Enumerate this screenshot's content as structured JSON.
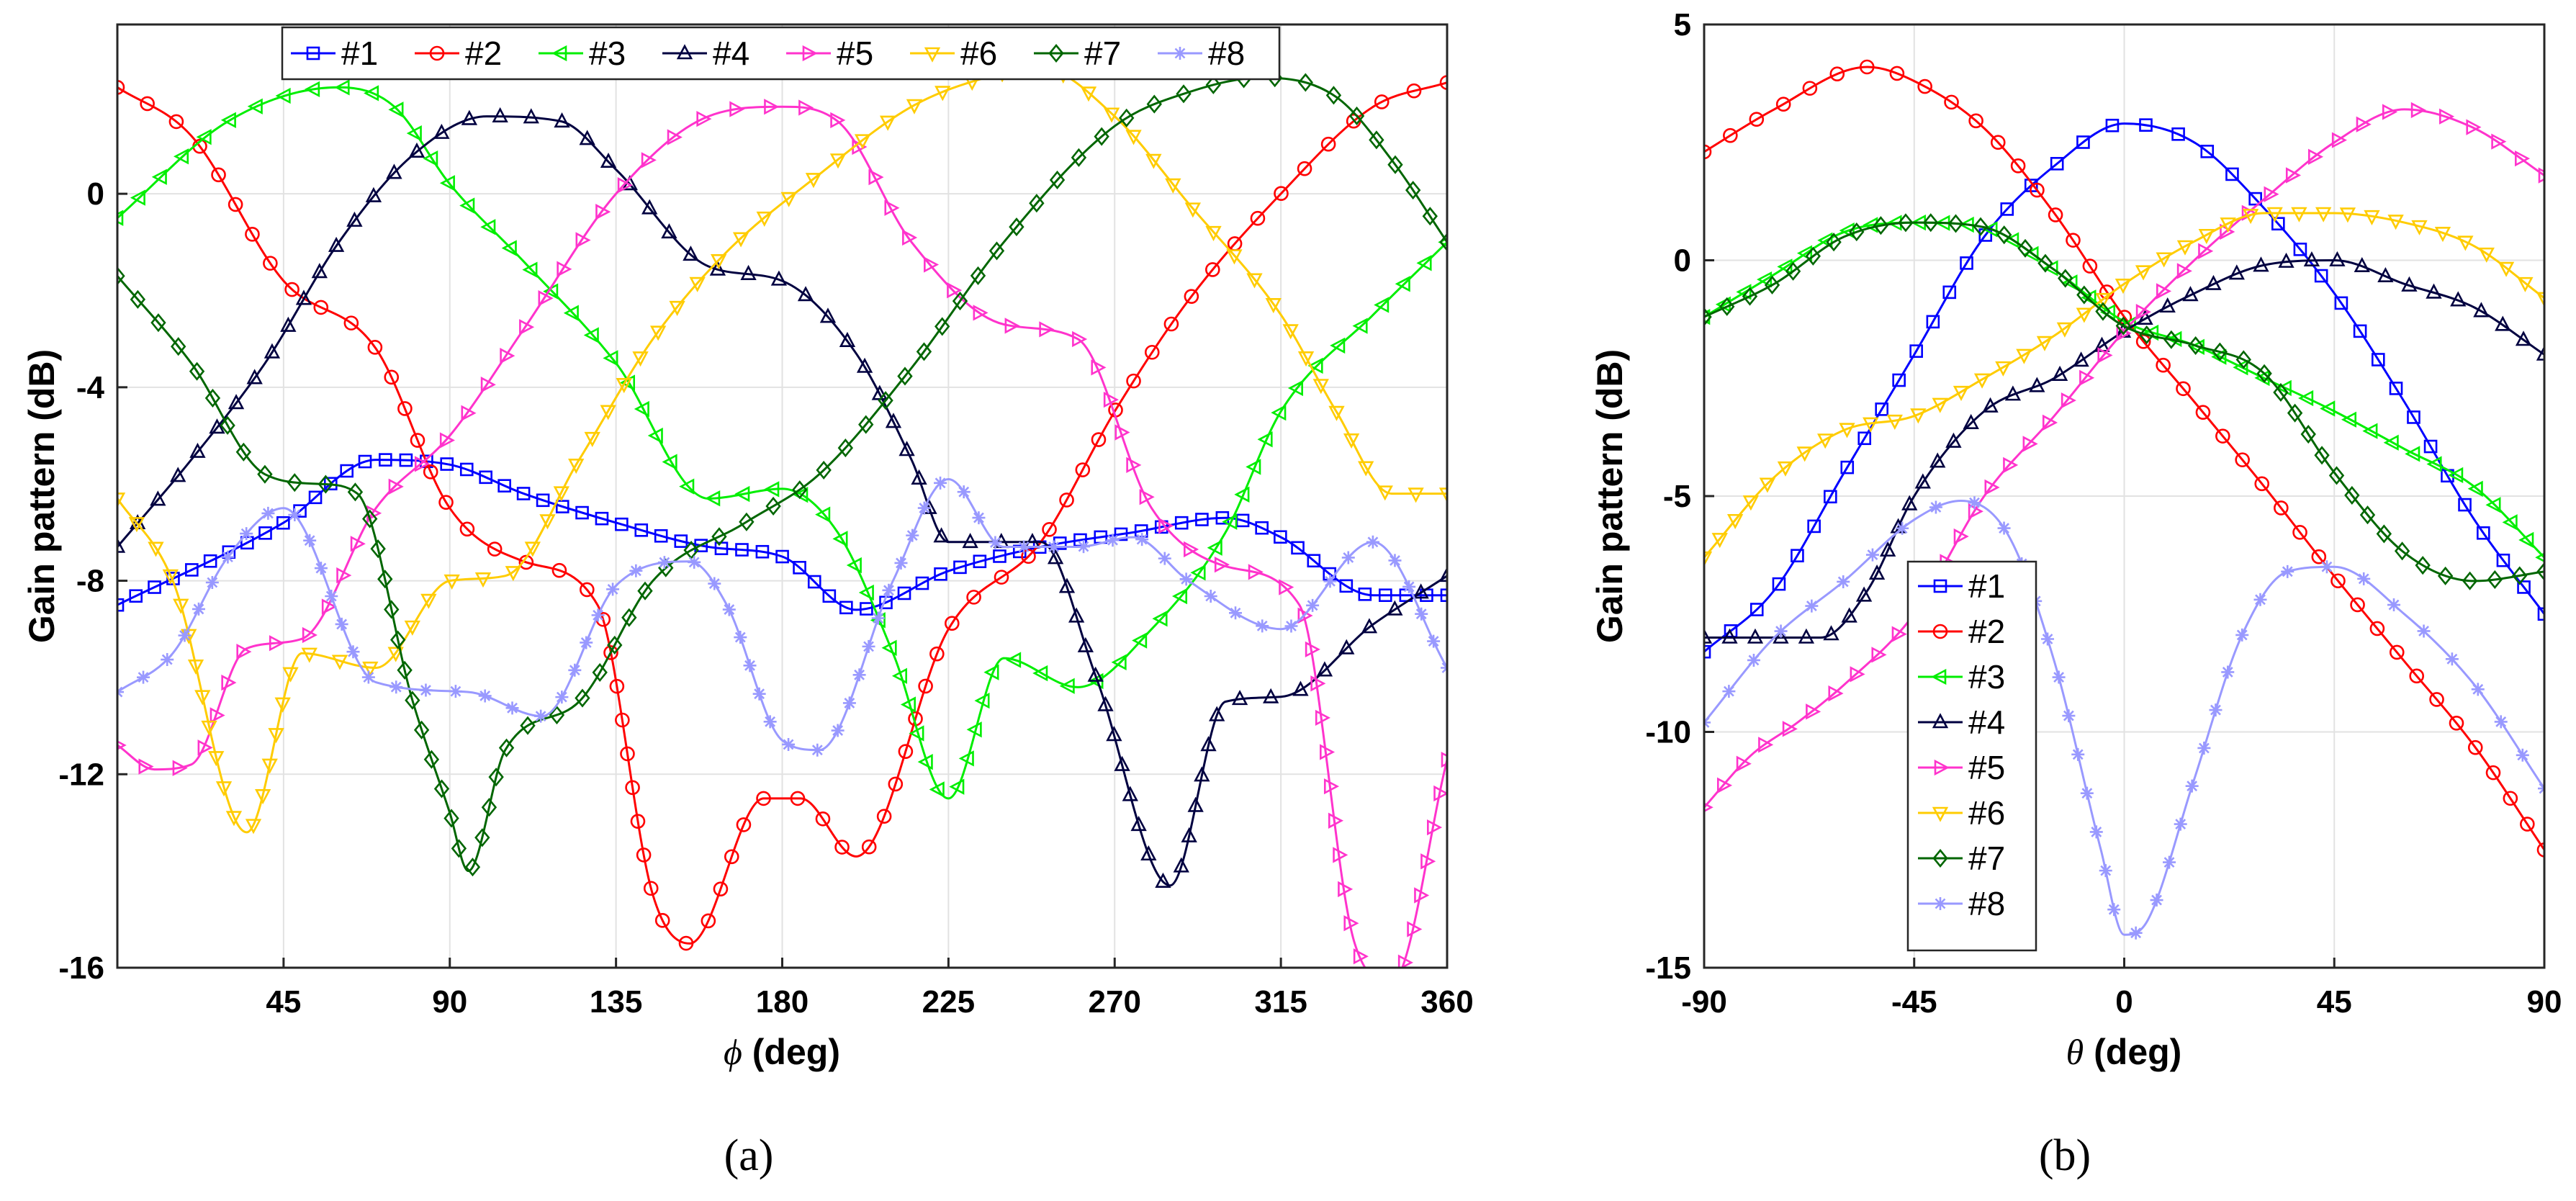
{
  "chart_data": [
    {
      "type": "line",
      "xlabel_symbol": "ϕ",
      "xlabel_rest": " (deg)",
      "ylabel": "Gain pattern (dB)",
      "subcaption": "(a)",
      "xlim": [
        0,
        360
      ],
      "ylim": [
        -16,
        3.5
      ],
      "xticks": [
        45,
        90,
        135,
        180,
        225,
        270,
        315,
        360
      ],
      "yticks": [
        0,
        -4,
        -8,
        -12,
        -16
      ],
      "legend_position": "top",
      "series": [
        {
          "name": "#1",
          "color": "#0000ff",
          "marker": "square",
          "x": [
            0,
            45,
            70,
            90,
            110,
            135,
            160,
            180,
            200,
            225,
            250,
            275,
            300,
            315,
            340,
            360
          ],
          "y": [
            -8.5,
            -6.8,
            -5.5,
            -5.6,
            -6.2,
            -6.8,
            -7.3,
            -7.5,
            -8.6,
            -7.8,
            -7.3,
            -7.0,
            -6.7,
            -7.1,
            -8.3,
            -8.3
          ]
        },
        {
          "name": "#2",
          "color": "#ff0000",
          "marker": "circle",
          "x": [
            0,
            20,
            45,
            70,
            90,
            110,
            130,
            145,
            155,
            175,
            185,
            200,
            225,
            250,
            270,
            290,
            315,
            340,
            360
          ],
          "y": [
            2.2,
            1.2,
            -1.8,
            -3.2,
            -6.5,
            -7.6,
            -8.5,
            -14.5,
            -15.5,
            -12.5,
            -12.5,
            -13.7,
            -9.0,
            -7.2,
            -4.5,
            -2.2,
            0,
            1.8,
            2.3
          ]
        },
        {
          "name": "#3",
          "color": "#00ee00",
          "marker": "triangle-left",
          "x": [
            0,
            30,
            60,
            75,
            90,
            110,
            135,
            160,
            180,
            195,
            210,
            225,
            240,
            260,
            280,
            300,
            315,
            340,
            360
          ],
          "y": [
            -0.5,
            1.5,
            2.2,
            1.8,
            0.2,
            -1.4,
            -3.5,
            -6.3,
            -6.1,
            -7.0,
            -9.5,
            -12.5,
            -9.6,
            -10.2,
            -9.0,
            -7.0,
            -4.5,
            -2.5,
            -1.0
          ]
        },
        {
          "name": "#4",
          "color": "#000040",
          "marker": "triangle-up",
          "x": [
            0,
            20,
            40,
            60,
            80,
            100,
            120,
            135,
            160,
            180,
            200,
            215,
            225,
            250,
            265,
            285,
            300,
            315,
            340,
            360
          ],
          "y": [
            -7.3,
            -5.5,
            -3.5,
            -1.0,
            0.8,
            1.6,
            1.5,
            0.5,
            -1.5,
            -1.8,
            -3.3,
            -5.5,
            -7.2,
            -7.2,
            -10.0,
            -14.3,
            -10.5,
            -10.4,
            -8.9,
            -7.9
          ]
        },
        {
          "name": "#5",
          "color": "#ff33cc",
          "marker": "triangle-right",
          "x": [
            0,
            10,
            20,
            35,
            50,
            70,
            90,
            110,
            135,
            160,
            180,
            195,
            215,
            240,
            260,
            280,
            300,
            320,
            335,
            345,
            360
          ],
          "y": [
            -11.4,
            -11.9,
            -11.8,
            -9.4,
            -9.2,
            -6.5,
            -5.0,
            -2.8,
            0,
            1.6,
            1.8,
            1.5,
            -1.0,
            -2.7,
            -3.0,
            -6.5,
            -7.7,
            -8.5,
            -15.5,
            -16.3,
            -11.7
          ]
        },
        {
          "name": "#6",
          "color": "#ffcc00",
          "marker": "triangle-down",
          "x": [
            0,
            15,
            35,
            50,
            70,
            90,
            105,
            125,
            145,
            165,
            190,
            215,
            235,
            250,
            270,
            290,
            315,
            330,
            345,
            360
          ],
          "y": [
            -6.3,
            -8.0,
            -13.2,
            -9.5,
            -9.8,
            -8.0,
            -7.9,
            -5.5,
            -3.0,
            -1.2,
            0.4,
            1.8,
            2.4,
            2.6,
            1.6,
            -0.2,
            -2.5,
            -4.5,
            -6.2,
            -6.2
          ]
        },
        {
          "name": "#7",
          "color": "#006600",
          "marker": "diamond",
          "x": [
            0,
            20,
            40,
            55,
            65,
            80,
            90,
            95,
            105,
            125,
            145,
            170,
            190,
            215,
            240,
            270,
            290,
            310,
            330,
            345,
            360
          ],
          "y": [
            -1.7,
            -3.5,
            -5.8,
            -6.0,
            -6.2,
            -10.5,
            -12.8,
            -14.0,
            -11.5,
            -10.5,
            -8.0,
            -6.8,
            -5.8,
            -3.6,
            -1.0,
            1.4,
            2.1,
            2.4,
            2.0,
            0.7,
            -1.0
          ]
        },
        {
          "name": "#8",
          "color": "#9999ff",
          "marker": "asterisk",
          "x": [
            0,
            15,
            30,
            45,
            70,
            95,
            115,
            135,
            155,
            165,
            180,
            190,
            210,
            225,
            240,
            260,
            275,
            290,
            315,
            340,
            360
          ],
          "y": [
            -10.3,
            -9.5,
            -7.5,
            -6.5,
            -10.1,
            -10.3,
            -10.8,
            -8.1,
            -7.6,
            -8.5,
            -11.3,
            -11.5,
            -8.0,
            -5.9,
            -7.3,
            -7.3,
            -7.1,
            -8.0,
            -9.0,
            -7.2,
            -9.8
          ]
        }
      ]
    },
    {
      "type": "line",
      "xlabel_symbol": "θ",
      "xlabel_rest": " (deg)",
      "ylabel": "Gain pattern (dB)",
      "subcaption": "(b)",
      "xlim": [
        -90,
        90
      ],
      "ylim": [
        -15,
        5
      ],
      "xticks": [
        -90,
        -45,
        0,
        45,
        90
      ],
      "yticks": [
        5,
        0,
        -5,
        -10,
        -15
      ],
      "legend_position": "bottom-left",
      "series": [
        {
          "name": "#1",
          "color": "#0000ff",
          "marker": "square",
          "x": [
            -90,
            -75,
            -60,
            -45,
            -30,
            -15,
            0,
            15,
            30,
            45,
            60,
            75,
            90
          ],
          "y": [
            -8.3,
            -7.0,
            -4.5,
            -2.0,
            0.5,
            2.0,
            2.9,
            2.5,
            1.1,
            -0.7,
            -3.0,
            -5.5,
            -7.5
          ]
        },
        {
          "name": "#2",
          "color": "#ff0000",
          "marker": "circle",
          "x": [
            -90,
            -75,
            -55,
            -45,
            -30,
            -15,
            0,
            15,
            30,
            45,
            60,
            75,
            90
          ],
          "y": [
            2.3,
            3.2,
            4.1,
            3.8,
            2.8,
            1.0,
            -1.2,
            -3.0,
            -4.8,
            -6.7,
            -8.5,
            -10.3,
            -12.5
          ]
        },
        {
          "name": "#3",
          "color": "#00ee00",
          "marker": "triangle-left",
          "x": [
            -90,
            -75,
            -60,
            -45,
            -30,
            -15,
            0,
            15,
            30,
            45,
            60,
            75,
            90
          ],
          "y": [
            -1.2,
            -0.3,
            0.6,
            0.8,
            0.7,
            -0.2,
            -1.3,
            -1.8,
            -2.5,
            -3.2,
            -4.0,
            -4.8,
            -6.3
          ]
        },
        {
          "name": "#4",
          "color": "#000040",
          "marker": "triangle-up",
          "x": [
            -90,
            -75,
            -65,
            -55,
            -45,
            -30,
            -15,
            0,
            15,
            30,
            45,
            60,
            75,
            90
          ],
          "y": [
            -8.0,
            -8.0,
            -8.0,
            -7.0,
            -5.0,
            -3.2,
            -2.5,
            -1.5,
            -0.7,
            -0.1,
            0.0,
            -0.5,
            -1.0,
            -2.0
          ]
        },
        {
          "name": "#5",
          "color": "#ff33cc",
          "marker": "triangle-right",
          "x": [
            -90,
            -80,
            -70,
            -60,
            -45,
            -30,
            -15,
            0,
            15,
            30,
            45,
            60,
            75,
            90
          ],
          "y": [
            -11.6,
            -10.5,
            -9.8,
            -9.0,
            -7.5,
            -5.0,
            -3.3,
            -1.5,
            0.0,
            1.3,
            2.5,
            3.2,
            2.8,
            1.8
          ]
        },
        {
          "name": "#6",
          "color": "#ffcc00",
          "marker": "triangle-down",
          "x": [
            -90,
            -75,
            -60,
            -45,
            -30,
            -15,
            0,
            15,
            30,
            45,
            60,
            75,
            90
          ],
          "y": [
            -6.3,
            -4.6,
            -3.6,
            -3.3,
            -2.5,
            -1.6,
            -0.5,
            0.4,
            1.0,
            1.0,
            0.8,
            0.3,
            -0.8
          ]
        },
        {
          "name": "#7",
          "color": "#006600",
          "marker": "diamond",
          "x": [
            -90,
            -75,
            -60,
            -45,
            -30,
            -15,
            0,
            15,
            30,
            45,
            60,
            75,
            90
          ],
          "y": [
            -1.2,
            -0.5,
            0.5,
            0.8,
            0.7,
            -0.2,
            -1.4,
            -1.8,
            -2.4,
            -4.5,
            -6.2,
            -6.8,
            -6.6
          ]
        },
        {
          "name": "#8",
          "color": "#9999ff",
          "marker": "asterisk",
          "x": [
            -90,
            -75,
            -60,
            -45,
            -35,
            -25,
            -15,
            -5,
            0,
            5,
            15,
            25,
            35,
            45,
            60,
            75,
            90
          ],
          "y": [
            -9.8,
            -8.0,
            -6.8,
            -5.5,
            -5.1,
            -5.8,
            -8.5,
            -12.5,
            -14.3,
            -14.0,
            -11.0,
            -8.0,
            -6.6,
            -6.5,
            -7.5,
            -9.0,
            -11.2
          ]
        }
      ]
    }
  ]
}
